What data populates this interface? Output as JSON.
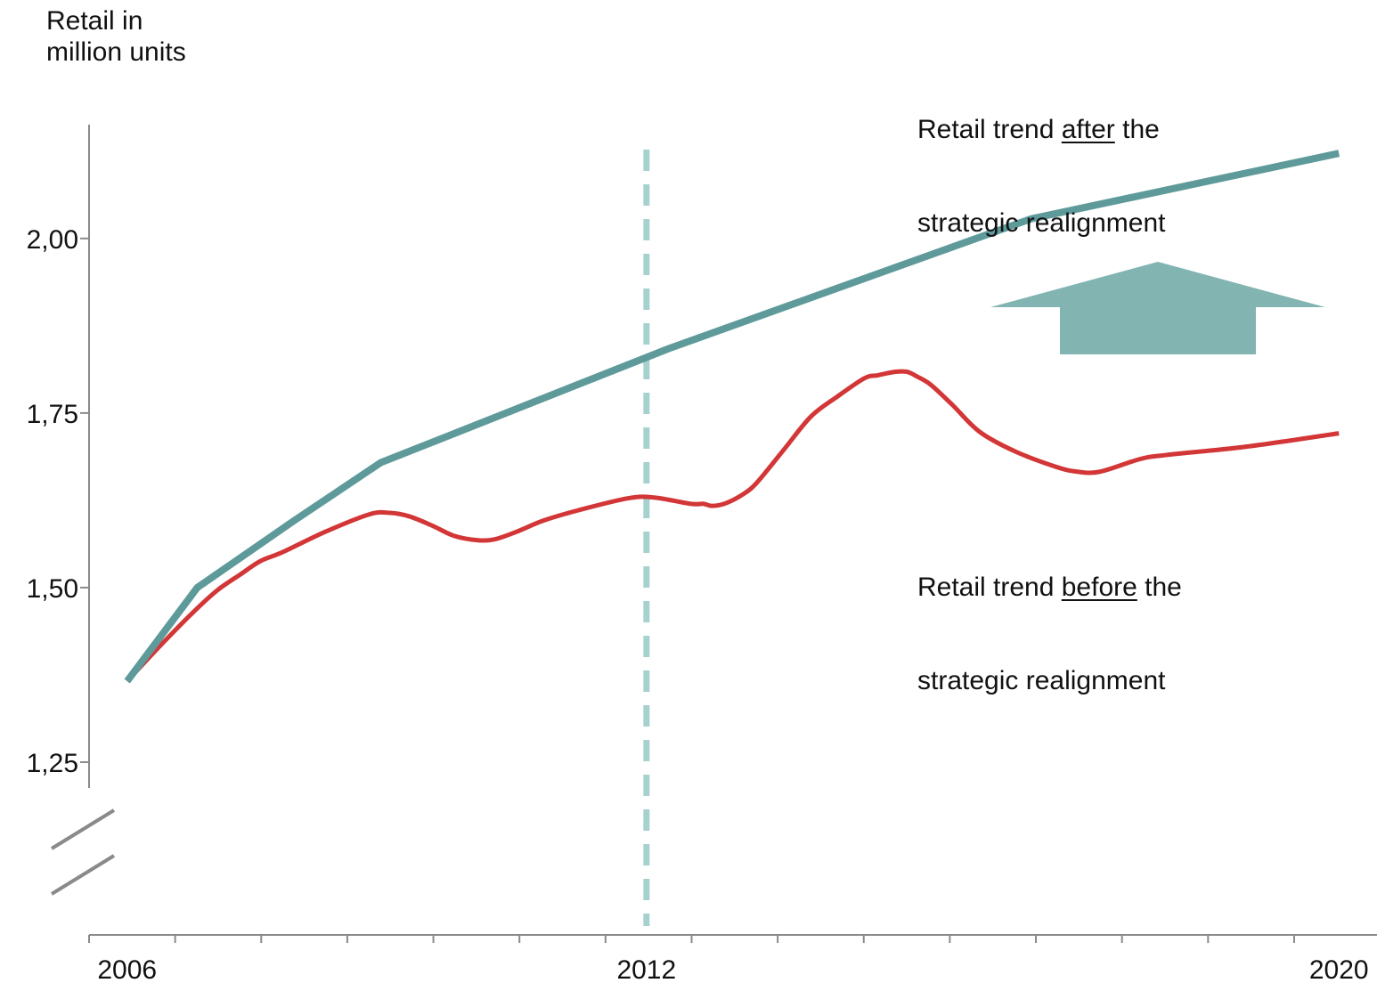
{
  "chart_data": {
    "type": "line",
    "ylabel": [
      "Retail in",
      "million units"
    ],
    "xlim": [
      2005.56,
      2020.44
    ],
    "ylim": [
      1.213,
      2.163
    ],
    "y_axis_break": true,
    "grid": false,
    "axis_color": "#8a8a8a",
    "x_ticks": [
      {
        "value": 2006,
        "label": "2006"
      },
      {
        "value": 2012,
        "label": "2012"
      },
      {
        "value": 2020,
        "label": "2020"
      }
    ],
    "y_ticks": [
      {
        "value": 2.0,
        "label": "2,00"
      },
      {
        "value": 1.75,
        "label": "1,75"
      },
      {
        "value": 1.5,
        "label": "1,50"
      },
      {
        "value": 1.25,
        "label": "1,25"
      }
    ],
    "series": [
      {
        "color": "#5f9a9a",
        "interpolation": "linear",
        "label": {
          "pre": "Retail trend ",
          "em": "after",
          "post": " the",
          "line2": "strategic realignment"
        },
        "points": [
          [
            2006.0,
            1.366
          ],
          [
            2006.81,
            1.5
          ],
          [
            2007.93,
            1.596
          ],
          [
            2008.93,
            1.679
          ],
          [
            2012.25,
            1.842
          ],
          [
            2016.44,
            2.028
          ],
          [
            2020.0,
            2.122
          ]
        ]
      },
      {
        "color": "#d33636",
        "interpolation": "smooth",
        "label": {
          "pre": "Retail trend ",
          "em": "before",
          "post": " the",
          "line2": "strategic realignment"
        },
        "points": [
          [
            2006.0,
            1.366
          ],
          [
            2006.43,
            1.423
          ],
          [
            2006.79,
            1.468
          ],
          [
            2007.05,
            1.497
          ],
          [
            2007.31,
            1.519
          ],
          [
            2007.54,
            1.538
          ],
          [
            2007.8,
            1.551
          ],
          [
            2008.29,
            1.58
          ],
          [
            2008.8,
            1.605
          ],
          [
            2009.04,
            1.607
          ],
          [
            2009.26,
            1.602
          ],
          [
            2009.52,
            1.589
          ],
          [
            2009.78,
            1.574
          ],
          [
            2010.04,
            1.568
          ],
          [
            2010.24,
            1.569
          ],
          [
            2010.5,
            1.58
          ],
          [
            2010.81,
            1.596
          ],
          [
            2011.22,
            1.611
          ],
          [
            2011.79,
            1.628
          ],
          [
            2012.09,
            1.629
          ],
          [
            2012.51,
            1.62
          ],
          [
            2012.66,
            1.62
          ],
          [
            2012.76,
            1.617
          ],
          [
            2012.92,
            1.621
          ],
          [
            2013.12,
            1.634
          ],
          [
            2013.28,
            1.651
          ],
          [
            2013.59,
            1.698
          ],
          [
            2013.9,
            1.745
          ],
          [
            2014.21,
            1.774
          ],
          [
            2014.52,
            1.8
          ],
          [
            2014.67,
            1.804
          ],
          [
            2014.87,
            1.809
          ],
          [
            2015.01,
            1.809
          ],
          [
            2015.13,
            1.802
          ],
          [
            2015.29,
            1.79
          ],
          [
            2015.54,
            1.761
          ],
          [
            2015.85,
            1.723
          ],
          [
            2016.26,
            1.695
          ],
          [
            2016.73,
            1.673
          ],
          [
            2016.98,
            1.666
          ],
          [
            2017.24,
            1.666
          ],
          [
            2017.7,
            1.684
          ],
          [
            2018.01,
            1.69
          ],
          [
            2018.94,
            1.702
          ],
          [
            2020.0,
            1.721
          ]
        ]
      }
    ],
    "reference_line": {
      "x": 2012,
      "style": "dashed",
      "color": "#a5d1ce"
    },
    "arrow": {
      "direction": "up",
      "color": "#82b4b2"
    }
  }
}
